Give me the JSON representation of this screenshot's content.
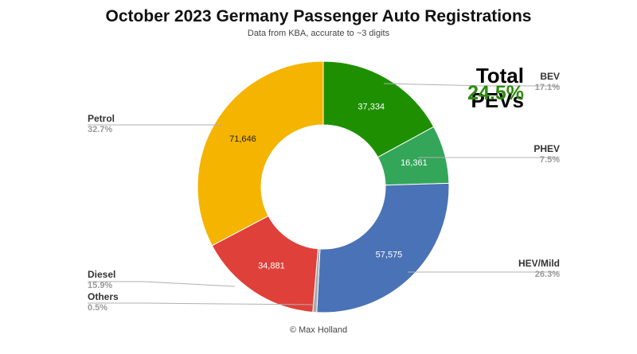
{
  "title": "October 2023 Germany Passenger Auto Registrations",
  "subtitle": "Data from KBA, accurate to ~3 digits",
  "credit": "© Max Holland",
  "callout": {
    "label": "Total PEVs",
    "value": "24.5%",
    "color": "#2e8b0e"
  },
  "chart_data": {
    "type": "pie",
    "donut": true,
    "title": "October 2023 Germany Passenger Auto Registrations",
    "subtitle": "Data from KBA, accurate to ~3 digits",
    "series": [
      {
        "name": "BEV",
        "value": 37334,
        "value_label": "37,334",
        "percent": "17.1%",
        "color": "#1e9000",
        "label_color": "#ffffff"
      },
      {
        "name": "PHEV",
        "value": 16361,
        "value_label": "16,361",
        "percent": "7.5%",
        "color": "#34a65a",
        "label_color": "#ffffff"
      },
      {
        "name": "HEV/Mild",
        "value": 57575,
        "value_label": "57,575",
        "percent": "26.3%",
        "color": "#4a72b6",
        "label_color": "#ffffff"
      },
      {
        "name": "Others",
        "value": 1100,
        "value_label": "",
        "percent": "0.5%",
        "color": "#a9a9a9",
        "label_color": "#ffffff"
      },
      {
        "name": "Diesel",
        "value": 34881,
        "value_label": "34,881",
        "percent": "15.9%",
        "color": "#e0403a",
        "label_color": "#ffffff"
      },
      {
        "name": "Petrol",
        "value": 71646,
        "value_label": "71,646",
        "percent": "32.7%",
        "color": "#f4b400",
        "label_color": "#222222"
      }
    ]
  }
}
